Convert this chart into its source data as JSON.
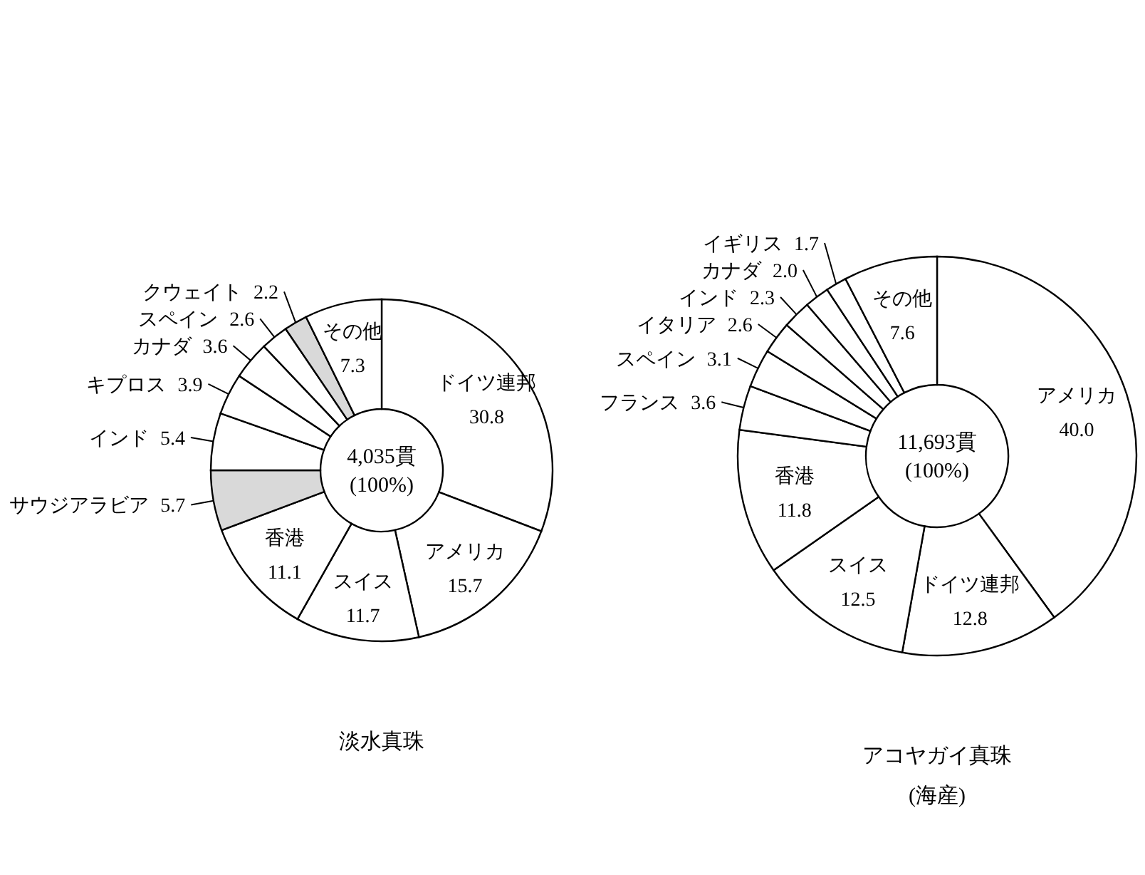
{
  "chart_data": [
    {
      "type": "donut",
      "title": "淡水真珠",
      "annotations": [
        "4,035貫",
        "(100%)"
      ],
      "value_labels": [
        "30.8",
        "15.7",
        "11.7",
        "11.1",
        "5.7",
        "5.4",
        "3.9",
        "3.6",
        "2.6",
        "2.2",
        "7.3"
      ],
      "categories": [
        "ドイツ連邦",
        "アメリカ",
        "スイス",
        "香港",
        "サウジアラビア",
        "インド",
        "キプロス",
        "カナダ",
        "スペイン",
        "クウェイト",
        "その他"
      ],
      "values": [
        30.8,
        15.7,
        11.7,
        11.1,
        5.7,
        5.4,
        3.9,
        3.6,
        2.6,
        2.2,
        7.3
      ],
      "colors": [
        "#ffffff",
        "#ffffff",
        "#ffffff",
        "#ffffff",
        "#d9d9d9",
        "#ffffff",
        "#ffffff",
        "#ffffff",
        "#ffffff",
        "#d9d9d9",
        "#ffffff"
      ]
    },
    {
      "type": "donut",
      "title": "アコヤガイ真珠",
      "subtitle": "(海産)",
      "annotations": [
        "11,693貫",
        "(100%)"
      ],
      "value_labels": [
        "40.0",
        "12.8",
        "12.5",
        "11.8",
        "3.6",
        "3.1",
        "2.6",
        "2.3",
        "2.0",
        "1.7",
        "7.6"
      ],
      "categories": [
        "アメリカ",
        "ドイツ連邦",
        "スイス",
        "香港",
        "フランス",
        "スペイン",
        "イタリア",
        "インド",
        "カナダ",
        "イギリス",
        "その他"
      ],
      "values": [
        40.0,
        12.8,
        12.5,
        11.8,
        3.6,
        3.1,
        2.6,
        2.3,
        2.0,
        1.7,
        7.6
      ],
      "colors": [
        "#ffffff",
        "#ffffff",
        "#ffffff",
        "#ffffff",
        "#ffffff",
        "#ffffff",
        "#ffffff",
        "#ffffff",
        "#ffffff",
        "#ffffff",
        "#ffffff"
      ]
    }
  ]
}
